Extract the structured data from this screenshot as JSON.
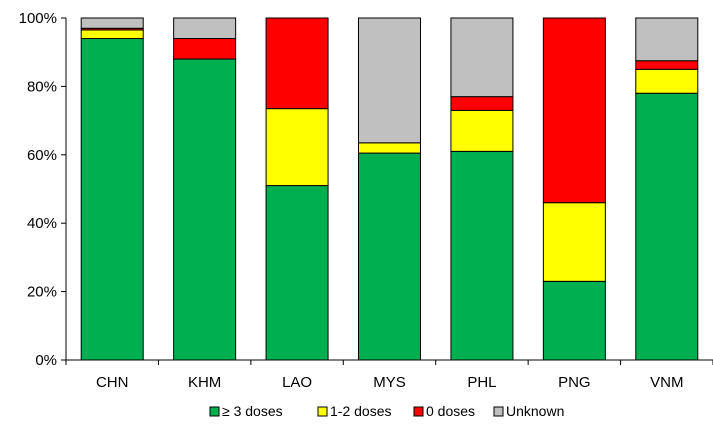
{
  "chart_data": {
    "type": "bar",
    "stacked": true,
    "normalized": true,
    "categories": [
      "CHN",
      "KHM",
      "LAO",
      "MYS",
      "PHL",
      "PNG",
      "VNM"
    ],
    "series": [
      {
        "name": "≥ 3 doses",
        "color": "#00b050",
        "values": [
          94,
          88,
          51,
          60.5,
          61,
          23,
          78
        ]
      },
      {
        "name": "1-2 doses",
        "color": "#ffff00",
        "values": [
          2.5,
          0,
          22.5,
          3,
          12,
          23,
          7
        ]
      },
      {
        "name": "0 doses",
        "color": "#ff0000",
        "values": [
          0.5,
          6,
          26.5,
          0,
          4,
          54,
          2.5
        ]
      },
      {
        "name": "Unknown",
        "color": "#c0c0c0",
        "values": [
          3,
          6,
          0,
          36.5,
          23,
          0,
          12.5
        ]
      }
    ],
    "ylim": [
      0,
      100
    ],
    "yticks": [
      "0%",
      "20%",
      "40%",
      "60%",
      "80%",
      "100%"
    ],
    "ytick_values": [
      0,
      20,
      40,
      60,
      80,
      100
    ],
    "legend_position": "bottom",
    "grid": false
  }
}
